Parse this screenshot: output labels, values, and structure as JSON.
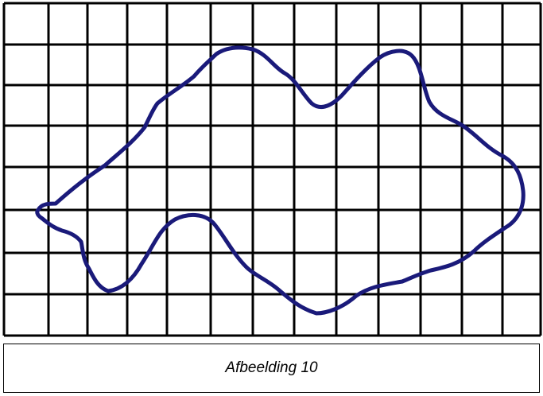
{
  "figure": {
    "grid_color": "#000000",
    "outline_color": "#1a1a7a"
  },
  "caption": {
    "text": "Afbeelding 10"
  }
}
